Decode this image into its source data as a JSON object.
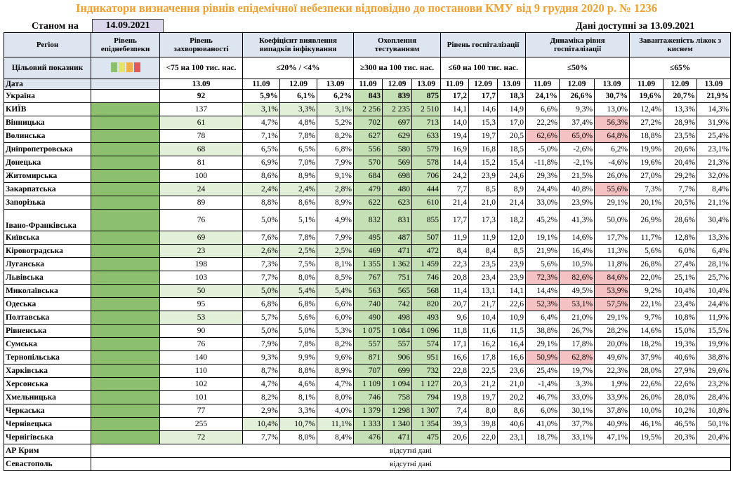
{
  "title": "Індикатори визначення рівнів епідемічної небезпеки відповідно до постанови КМУ від 9 грудня 2020 р. № 1236",
  "as_of_label": "Станом на",
  "as_of_date": "14.09.2021",
  "available_label": "Дані доступні за",
  "available_date": "13.09.2021",
  "headers": {
    "region": "Регіон",
    "danger_level": "Рівень епіднебезпеки",
    "incidence": "Рівень захворюваності",
    "positivity": "Коефіцієнт виявлення випадків інфікування",
    "testing": "Охоплення тестуванням",
    "hospitalization": "Рівень госпіталізації",
    "hosp_dynamics": "Динаміка рівня госпіталізації",
    "oxygen_beds": "Завантаженість ліжок з киснем"
  },
  "targets": {
    "label": "Цільовий показник",
    "incidence": "<75 на 100 тис. нас.",
    "positivity": "≤20% / <4%",
    "testing": "≥300 на 100 тис. нас.",
    "hospitalization": "≤60 на 100 тис. нас.",
    "hosp_dynamics": "≤50%",
    "oxygen_beds": "≤65%"
  },
  "level_colors": [
    "#8CBF6E",
    "#E6E36A",
    "#F2B04A",
    "#E05A5A"
  ],
  "dates": {
    "label": "Дата",
    "incidence": "13.09",
    "triple": [
      "11.09",
      "12.09",
      "13.09"
    ]
  },
  "rows": [
    {
      "region": "Україна",
      "incidence": "92",
      "pos": [
        "5,9%",
        "6,1%",
        "6,2%"
      ],
      "test": [
        "843",
        "839",
        "875"
      ],
      "hosp": [
        "17,2",
        "17,7",
        "18,3"
      ],
      "dyn": [
        "24,1%",
        "26,6%",
        "30,7%"
      ],
      "oxy": [
        "19,6%",
        "20,7%",
        "21,9%"
      ]
    },
    {
      "region": "КИЇВ",
      "incidence": "137",
      "pos": [
        "3,1%",
        "3,3%",
        "3,1%"
      ],
      "test": [
        "2 256",
        "2 235",
        "2 510"
      ],
      "hosp": [
        "14,1",
        "14,6",
        "14,9"
      ],
      "dyn": [
        "6,6%",
        "9,3%",
        "13,0%"
      ],
      "oxy": [
        "12,4%",
        "13,3%",
        "14,3%"
      ]
    },
    {
      "region": "Вінницька",
      "incidence": "61",
      "pos": [
        "4,7%",
        "4,8%",
        "5,2%"
      ],
      "test": [
        "702",
        "697",
        "713"
      ],
      "hosp": [
        "14,0",
        "15,3",
        "17,0"
      ],
      "dyn": [
        "22,2%",
        "37,4%",
        "56,3%"
      ],
      "oxy": [
        "27,2%",
        "28,9%",
        "31,9%"
      ]
    },
    {
      "region": "Волинська",
      "incidence": "78",
      "pos": [
        "7,1%",
        "7,8%",
        "8,2%"
      ],
      "test": [
        "627",
        "629",
        "633"
      ],
      "hosp": [
        "19,4",
        "19,7",
        "20,5"
      ],
      "dyn": [
        "62,6%",
        "65,0%",
        "64,8%"
      ],
      "oxy": [
        "18,8%",
        "23,5%",
        "25,4%"
      ]
    },
    {
      "region": "Дніпропетровська",
      "incidence": "68",
      "pos": [
        "6,5%",
        "6,5%",
        "6,8%"
      ],
      "test": [
        "556",
        "580",
        "579"
      ],
      "hosp": [
        "16,9",
        "16,8",
        "18,5"
      ],
      "dyn": [
        "-5,0%",
        "-2,6%",
        "6,2%"
      ],
      "oxy": [
        "19,9%",
        "20,6%",
        "23,1%"
      ]
    },
    {
      "region": "Донецька",
      "incidence": "81",
      "pos": [
        "6,9%",
        "7,0%",
        "7,9%"
      ],
      "test": [
        "570",
        "569",
        "578"
      ],
      "hosp": [
        "14,4",
        "15,2",
        "15,4"
      ],
      "dyn": [
        "-11,8%",
        "-2,1%",
        "-4,6%"
      ],
      "oxy": [
        "19,6%",
        "20,4%",
        "21,3%"
      ]
    },
    {
      "region": "Житомирська",
      "incidence": "100",
      "pos": [
        "8,6%",
        "8,9%",
        "9,1%"
      ],
      "test": [
        "684",
        "698",
        "706"
      ],
      "hosp": [
        "24,2",
        "23,9",
        "24,6"
      ],
      "dyn": [
        "29,3%",
        "21,5%",
        "26,0%"
      ],
      "oxy": [
        "27,0%",
        "29,2%",
        "32,0%"
      ]
    },
    {
      "region": "Закарпатська",
      "incidence": "24",
      "pos": [
        "2,4%",
        "2,4%",
        "2,8%"
      ],
      "test": [
        "479",
        "480",
        "444"
      ],
      "hosp": [
        "7,7",
        "8,5",
        "8,9"
      ],
      "dyn": [
        "24,4%",
        "40,8%",
        "55,6%"
      ],
      "oxy": [
        "7,3%",
        "7,7%",
        "8,4%"
      ]
    },
    {
      "region": "Запорізька",
      "incidence": "89",
      "pos": [
        "8,8%",
        "8,6%",
        "8,9%"
      ],
      "test": [
        "622",
        "623",
        "610"
      ],
      "hosp": [
        "21,4",
        "21,0",
        "21,4"
      ],
      "dyn": [
        "33,0%",
        "23,9%",
        "29,1%"
      ],
      "oxy": [
        "20,1%",
        "20,5%",
        "21,1%"
      ]
    },
    {
      "region": "Івано-Франківська",
      "incidence": "76",
      "pos": [
        "5,0%",
        "5,1%",
        "4,9%"
      ],
      "test": [
        "832",
        "831",
        "855"
      ],
      "hosp": [
        "17,7",
        "17,3",
        "18,2"
      ],
      "dyn": [
        "45,2%",
        "41,3%",
        "50,0%"
      ],
      "oxy": [
        "26,9%",
        "28,6%",
        "30,4%"
      ]
    },
    {
      "region": "Київська",
      "incidence": "69",
      "pos": [
        "7,6%",
        "7,8%",
        "7,9%"
      ],
      "test": [
        "495",
        "487",
        "507"
      ],
      "hosp": [
        "11,9",
        "11,9",
        "12,0"
      ],
      "dyn": [
        "19,1%",
        "14,6%",
        "17,7%"
      ],
      "oxy": [
        "11,7%",
        "12,8%",
        "13,3%"
      ]
    },
    {
      "region": "Кіровоградська",
      "incidence": "23",
      "pos": [
        "2,6%",
        "2,5%",
        "2,5%"
      ],
      "test": [
        "469",
        "471",
        "472"
      ],
      "hosp": [
        "8,4",
        "8,4",
        "8,5"
      ],
      "dyn": [
        "21,9%",
        "16,4%",
        "11,3%"
      ],
      "oxy": [
        "5,6%",
        "6,0%",
        "6,4%"
      ]
    },
    {
      "region": "Луганська",
      "incidence": "198",
      "pos": [
        "7,3%",
        "7,5%",
        "8,1%"
      ],
      "test": [
        "1 355",
        "1 362",
        "1 459"
      ],
      "hosp": [
        "22,3",
        "23,5",
        "23,9"
      ],
      "dyn": [
        "5,6%",
        "10,5%",
        "11,8%"
      ],
      "oxy": [
        "26,8%",
        "27,4%",
        "28,1%"
      ]
    },
    {
      "region": "Львівська",
      "incidence": "103",
      "pos": [
        "7,7%",
        "8,0%",
        "8,5%"
      ],
      "test": [
        "767",
        "751",
        "746"
      ],
      "hosp": [
        "20,8",
        "23,4",
        "23,9"
      ],
      "dyn": [
        "72,3%",
        "82,6%",
        "84,6%"
      ],
      "oxy": [
        "22,0%",
        "25,1%",
        "25,7%"
      ]
    },
    {
      "region": "Миколаївська",
      "incidence": "50",
      "pos": [
        "5,0%",
        "5,4%",
        "5,4%"
      ],
      "test": [
        "563",
        "565",
        "568"
      ],
      "hosp": [
        "11,4",
        "13,1",
        "14,1"
      ],
      "dyn": [
        "14,4%",
        "49,5%",
        "53,9%"
      ],
      "oxy": [
        "9,2%",
        "10,4%",
        "10,4%"
      ]
    },
    {
      "region": "Одеська",
      "incidence": "95",
      "pos": [
        "6,8%",
        "6,8%",
        "6,6%"
      ],
      "test": [
        "740",
        "742",
        "820"
      ],
      "hosp": [
        "20,7",
        "21,7",
        "22,6"
      ],
      "dyn": [
        "52,3%",
        "53,1%",
        "57,5%"
      ],
      "oxy": [
        "22,1%",
        "23,4%",
        "24,4%"
      ]
    },
    {
      "region": "Полтавська",
      "incidence": "53",
      "pos": [
        "5,7%",
        "5,6%",
        "6,0%"
      ],
      "test": [
        "490",
        "498",
        "493"
      ],
      "hosp": [
        "9,6",
        "10,4",
        "10,9"
      ],
      "dyn": [
        "6,4%",
        "21,0%",
        "29,1%"
      ],
      "oxy": [
        "9,7%",
        "10,8%",
        "11,9%"
      ]
    },
    {
      "region": "Рівненська",
      "incidence": "90",
      "pos": [
        "5,0%",
        "5,0%",
        "5,3%"
      ],
      "test": [
        "1 075",
        "1 084",
        "1 096"
      ],
      "hosp": [
        "11,8",
        "11,6",
        "11,5"
      ],
      "dyn": [
        "38,8%",
        "26,7%",
        "28,2%"
      ],
      "oxy": [
        "14,6%",
        "15,0%",
        "15,5%"
      ]
    },
    {
      "region": "Сумська",
      "incidence": "76",
      "pos": [
        "7,9%",
        "7,8%",
        "8,2%"
      ],
      "test": [
        "557",
        "557",
        "574"
      ],
      "hosp": [
        "17,1",
        "16,2",
        "16,4"
      ],
      "dyn": [
        "29,1%",
        "17,8%",
        "20,0%"
      ],
      "oxy": [
        "18,2%",
        "19,3%",
        "19,9%"
      ]
    },
    {
      "region": "Тернопільська",
      "incidence": "140",
      "pos": [
        "9,3%",
        "9,9%",
        "9,6%"
      ],
      "test": [
        "871",
        "906",
        "951"
      ],
      "hosp": [
        "16,6",
        "17,8",
        "16,6"
      ],
      "dyn": [
        "50,9%",
        "62,8%",
        "49,6%"
      ],
      "oxy": [
        "37,9%",
        "40,6%",
        "38,8%"
      ]
    },
    {
      "region": "Харківська",
      "incidence": "110",
      "pos": [
        "8,7%",
        "8,8%",
        "8,9%"
      ],
      "test": [
        "707",
        "699",
        "732"
      ],
      "hosp": [
        "22,8",
        "22,5",
        "23,6"
      ],
      "dyn": [
        "25,4%",
        "19,7%",
        "22,3%"
      ],
      "oxy": [
        "28,0%",
        "27,9%",
        "29,6%"
      ]
    },
    {
      "region": "Херсонська",
      "incidence": "102",
      "pos": [
        "4,7%",
        "4,6%",
        "4,7%"
      ],
      "test": [
        "1 109",
        "1 094",
        "1 127"
      ],
      "hosp": [
        "20,3",
        "21,2",
        "21,0"
      ],
      "dyn": [
        "-1,4%",
        "3,3%",
        "1,9%"
      ],
      "oxy": [
        "22,6%",
        "22,6%",
        "23,2%"
      ]
    },
    {
      "region": "Хмельницька",
      "incidence": "101",
      "pos": [
        "8,2%",
        "8,1%",
        "8,0%"
      ],
      "test": [
        "746",
        "758",
        "794"
      ],
      "hosp": [
        "19,8",
        "19,7",
        "20,2"
      ],
      "dyn": [
        "46,7%",
        "33,0%",
        "33,9%"
      ],
      "oxy": [
        "26,0%",
        "28,0%",
        "28,4%"
      ]
    },
    {
      "region": "Черкаська",
      "incidence": "77",
      "pos": [
        "2,9%",
        "3,3%",
        "4,0%"
      ],
      "test": [
        "1 379",
        "1 298",
        "1 307"
      ],
      "hosp": [
        "7,4",
        "8,0",
        "8,6"
      ],
      "dyn": [
        "6,0%",
        "30,1%",
        "37,8%"
      ],
      "oxy": [
        "10,0%",
        "10,2%",
        "10,8%"
      ]
    },
    {
      "region": "Чернівецька",
      "incidence": "255",
      "pos": [
        "10,4%",
        "10,7%",
        "11,1%"
      ],
      "test": [
        "1 333",
        "1 340",
        "1 354"
      ],
      "hosp": [
        "39,3",
        "39,8",
        "40,6"
      ],
      "dyn": [
        "41,0%",
        "37,7%",
        "40,9%"
      ],
      "oxy": [
        "46,1%",
        "46,5%",
        "50,1%"
      ]
    },
    {
      "region": "Чернігівська",
      "incidence": "72",
      "pos": [
        "7,7%",
        "8,0%",
        "8,4%"
      ],
      "test": [
        "476",
        "471",
        "475"
      ],
      "hosp": [
        "20,6",
        "22,0",
        "23,1"
      ],
      "dyn": [
        "18,7%",
        "33,1%",
        "47,1%"
      ],
      "oxy": [
        "19,5%",
        "20,3%",
        "20,4%"
      ]
    }
  ],
  "missing_rows": [
    {
      "region": "АР Крим",
      "note": "відсутні дані"
    },
    {
      "region": "Севастополь",
      "note": "відсутні дані"
    }
  ]
}
